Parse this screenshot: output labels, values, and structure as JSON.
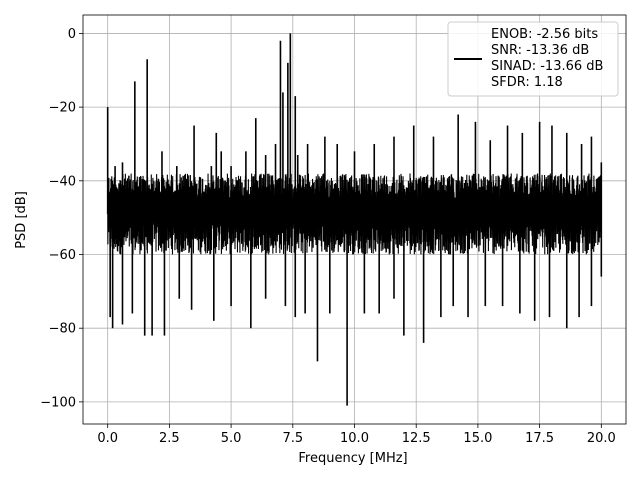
{
  "chart_data": {
    "type": "line",
    "title": "",
    "xlabel": "Frequency [MHz]",
    "ylabel": "PSD [dB]",
    "xlim": [
      -1.0,
      21.0
    ],
    "ylim": [
      -106,
      5
    ],
    "xticks": [
      0.0,
      2.5,
      5.0,
      7.5,
      10.0,
      12.5,
      15.0,
      17.5,
      20.0
    ],
    "xtick_labels": [
      "0.0",
      "2.5",
      "5.0",
      "7.5",
      "10.0",
      "12.5",
      "15.0",
      "17.5",
      "20.0"
    ],
    "yticks": [
      0,
      -20,
      -40,
      -60,
      -80,
      -100
    ],
    "ytick_labels": [
      "0",
      "−20",
      "−40",
      "−60",
      "−80",
      "−100"
    ],
    "grid": true,
    "legend_position": "top-right",
    "series": [
      {
        "name": "ENOB: -2.56 bits\nSNR: -13.36 dB\nSINAD: -13.66 dB\nSFDR: 1.18",
        "color": "#000000",
        "noise_band_db": [
          -60,
          -38
        ],
        "x_range": [
          0.0,
          20.0
        ],
        "spikes_up": [
          {
            "x": 0.0,
            "y": -20
          },
          {
            "x": 0.3,
            "y": -36
          },
          {
            "x": 0.6,
            "y": -35
          },
          {
            "x": 1.1,
            "y": -13
          },
          {
            "x": 1.6,
            "y": -7
          },
          {
            "x": 2.2,
            "y": -32
          },
          {
            "x": 2.8,
            "y": -36
          },
          {
            "x": 3.5,
            "y": -25
          },
          {
            "x": 4.2,
            "y": -36
          },
          {
            "x": 4.4,
            "y": -27
          },
          {
            "x": 4.6,
            "y": -32
          },
          {
            "x": 5.0,
            "y": -36
          },
          {
            "x": 5.6,
            "y": -32
          },
          {
            "x": 6.0,
            "y": -23
          },
          {
            "x": 6.4,
            "y": -33
          },
          {
            "x": 6.8,
            "y": -30
          },
          {
            "x": 7.0,
            "y": -2
          },
          {
            "x": 7.1,
            "y": -16
          },
          {
            "x": 7.3,
            "y": -8
          },
          {
            "x": 7.4,
            "y": 0
          },
          {
            "x": 7.6,
            "y": -17
          },
          {
            "x": 7.7,
            "y": -33
          },
          {
            "x": 8.1,
            "y": -30
          },
          {
            "x": 8.8,
            "y": -28
          },
          {
            "x": 9.3,
            "y": -30
          },
          {
            "x": 10.0,
            "y": -32
          },
          {
            "x": 10.8,
            "y": -30
          },
          {
            "x": 11.6,
            "y": -28
          },
          {
            "x": 12.4,
            "y": -25
          },
          {
            "x": 13.2,
            "y": -28
          },
          {
            "x": 14.2,
            "y": -22
          },
          {
            "x": 14.9,
            "y": -24
          },
          {
            "x": 15.5,
            "y": -29
          },
          {
            "x": 16.2,
            "y": -25
          },
          {
            "x": 16.8,
            "y": -27
          },
          {
            "x": 17.5,
            "y": -24
          },
          {
            "x": 18.0,
            "y": -25
          },
          {
            "x": 18.6,
            "y": -27
          },
          {
            "x": 19.2,
            "y": -30
          },
          {
            "x": 19.6,
            "y": -28
          },
          {
            "x": 20.0,
            "y": -35
          }
        ],
        "spikes_down": [
          {
            "x": 0.1,
            "y": -77
          },
          {
            "x": 0.2,
            "y": -80
          },
          {
            "x": 0.6,
            "y": -79
          },
          {
            "x": 1.0,
            "y": -76
          },
          {
            "x": 1.5,
            "y": -82
          },
          {
            "x": 1.8,
            "y": -82
          },
          {
            "x": 2.3,
            "y": -82
          },
          {
            "x": 2.9,
            "y": -72
          },
          {
            "x": 3.4,
            "y": -75
          },
          {
            "x": 4.3,
            "y": -78
          },
          {
            "x": 5.0,
            "y": -74
          },
          {
            "x": 5.8,
            "y": -80
          },
          {
            "x": 6.4,
            "y": -72
          },
          {
            "x": 7.2,
            "y": -74
          },
          {
            "x": 7.6,
            "y": -77
          },
          {
            "x": 8.0,
            "y": -76
          },
          {
            "x": 8.5,
            "y": -89
          },
          {
            "x": 9.0,
            "y": -76
          },
          {
            "x": 9.7,
            "y": -101
          },
          {
            "x": 10.4,
            "y": -76
          },
          {
            "x": 11.0,
            "y": -76
          },
          {
            "x": 11.6,
            "y": -72
          },
          {
            "x": 12.0,
            "y": -82
          },
          {
            "x": 12.8,
            "y": -84
          },
          {
            "x": 13.5,
            "y": -77
          },
          {
            "x": 14.0,
            "y": -74
          },
          {
            "x": 14.6,
            "y": -77
          },
          {
            "x": 15.3,
            "y": -74
          },
          {
            "x": 16.0,
            "y": -74
          },
          {
            "x": 16.7,
            "y": -76
          },
          {
            "x": 17.3,
            "y": -78
          },
          {
            "x": 17.9,
            "y": -77
          },
          {
            "x": 18.6,
            "y": -80
          },
          {
            "x": 19.1,
            "y": -77
          },
          {
            "x": 19.6,
            "y": -74
          },
          {
            "x": 20.0,
            "y": -66
          }
        ]
      }
    ]
  }
}
